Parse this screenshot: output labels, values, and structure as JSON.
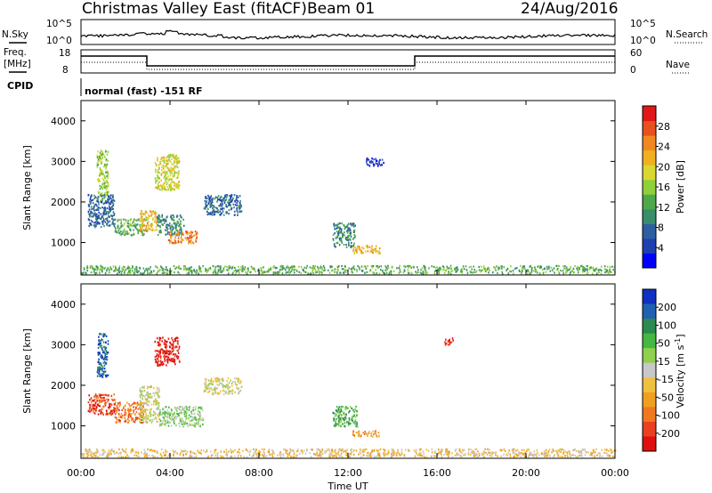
{
  "header": {
    "title": "Christmas Valley East (fitACF)",
    "beam": "Beam 01",
    "date": "24/Aug/2016"
  },
  "summary": {
    "nsky_label": "N.Sky",
    "nsky_ticks": [
      "10^5",
      "10^0"
    ],
    "nsearch_label": "N.Search",
    "freq_label": "Freq.",
    "freq_unit": "[MHz]",
    "freq_ticks": [
      "18",
      "8"
    ],
    "nave_label": "Nave",
    "nave_ticks": [
      "60",
      "0"
    ],
    "cpid_label": "CPID",
    "cpid_text": "normal (fast) -151 RF"
  },
  "chart_data": [
    {
      "type": "heatmap",
      "name": "power",
      "ylabel": "Slant Range [km]",
      "xlabel": "Time UT",
      "x_ticks": [
        "00:00",
        "04:00",
        "08:00",
        "12:00",
        "16:00",
        "20:00",
        "00:00"
      ],
      "y_ticks": [
        "1000",
        "2000",
        "3000",
        "4000"
      ],
      "ylim": [
        200,
        4500
      ],
      "xlim_hours": [
        0,
        24
      ],
      "colorbar": {
        "label": "Power [dB]",
        "ticks": [
          "4",
          "8",
          "12",
          "16",
          "20",
          "24",
          "28"
        ],
        "colors": [
          "#0000ff",
          "#1e3fb0",
          "#2d5fa0",
          "#3a8d6a",
          "#4fa84a",
          "#8fcf3a",
          "#d8d830",
          "#f0b020",
          "#f08820",
          "#e85020",
          "#e01818"
        ]
      },
      "echo_regions": [
        {
          "t": [
            0.7,
            1.2
          ],
          "r": [
            2000,
            3300
          ],
          "level": 5
        },
        {
          "t": [
            0.3,
            1.5
          ],
          "r": [
            1400,
            2200
          ],
          "level": 2
        },
        {
          "t": [
            1.5,
            3.0
          ],
          "r": [
            1200,
            1600
          ],
          "level": 4
        },
        {
          "t": [
            2.6,
            3.4
          ],
          "r": [
            1300,
            1800
          ],
          "level": 7
        },
        {
          "t": [
            3.4,
            4.6
          ],
          "r": [
            1200,
            1700
          ],
          "level": 3
        },
        {
          "t": [
            3.9,
            5.2
          ],
          "r": [
            1000,
            1300
          ],
          "level": 8
        },
        {
          "t": [
            3.3,
            4.4
          ],
          "r": [
            2300,
            3200
          ],
          "level": 6
        },
        {
          "t": [
            5.5,
            7.2
          ],
          "r": [
            1700,
            2200
          ],
          "level": 2
        },
        {
          "t": [
            11.3,
            12.3
          ],
          "r": [
            900,
            1500
          ],
          "level": 3
        },
        {
          "t": [
            12.2,
            13.4
          ],
          "r": [
            750,
            950
          ],
          "level": 7
        },
        {
          "t": [
            12.8,
            13.6
          ],
          "r": [
            2900,
            3100
          ],
          "level": 1
        },
        {
          "t": [
            0.0,
            24.0
          ],
          "r": [
            250,
            450
          ],
          "level": 4
        }
      ]
    },
    {
      "type": "heatmap",
      "name": "velocity",
      "ylabel": "Slant Range [km]",
      "xlabel": "Time UT",
      "x_ticks": [
        "00:00",
        "04:00",
        "08:00",
        "12:00",
        "16:00",
        "20:00",
        "00:00"
      ],
      "y_ticks": [
        "1000",
        "2000",
        "3000",
        "4000"
      ],
      "ylim": [
        200,
        4500
      ],
      "xlim_hours": [
        0,
        24
      ],
      "colorbar": {
        "label": "Velocity [m s^-1]",
        "ticks": [
          "200",
          "100",
          "50",
          "15",
          "-15",
          "-50",
          "-100",
          "-200"
        ],
        "colors": [
          "#1030c0",
          "#2060b0",
          "#2a8a50",
          "#44b840",
          "#90d050",
          "#c8c8c8",
          "#f0c040",
          "#f0a020",
          "#f07820",
          "#e84020",
          "#e01010"
        ]
      },
      "echo_regions": [
        {
          "t": [
            0.7,
            1.2
          ],
          "r": [
            2200,
            3300
          ],
          "level": 1
        },
        {
          "t": [
            0.3,
            1.5
          ],
          "r": [
            1300,
            1800
          ],
          "level": 9
        },
        {
          "t": [
            1.5,
            2.8
          ],
          "r": [
            1100,
            1600
          ],
          "level": 8
        },
        {
          "t": [
            2.6,
            3.5
          ],
          "r": [
            1100,
            2000
          ],
          "level": 5
        },
        {
          "t": [
            3.5,
            5.5
          ],
          "r": [
            1000,
            1500
          ],
          "level": 4
        },
        {
          "t": [
            3.3,
            4.4
          ],
          "r": [
            2500,
            3200
          ],
          "level": 10
        },
        {
          "t": [
            5.5,
            7.2
          ],
          "r": [
            1800,
            2200
          ],
          "level": 5
        },
        {
          "t": [
            11.3,
            12.4
          ],
          "r": [
            1000,
            1500
          ],
          "level": 3
        },
        {
          "t": [
            12.2,
            13.4
          ],
          "r": [
            750,
            900
          ],
          "level": 7
        },
        {
          "t": [
            16.3,
            16.7
          ],
          "r": [
            3000,
            3200
          ],
          "level": 10
        },
        {
          "t": [
            0.0,
            24.0
          ],
          "r": [
            250,
            450
          ],
          "level": 6
        }
      ]
    }
  ]
}
